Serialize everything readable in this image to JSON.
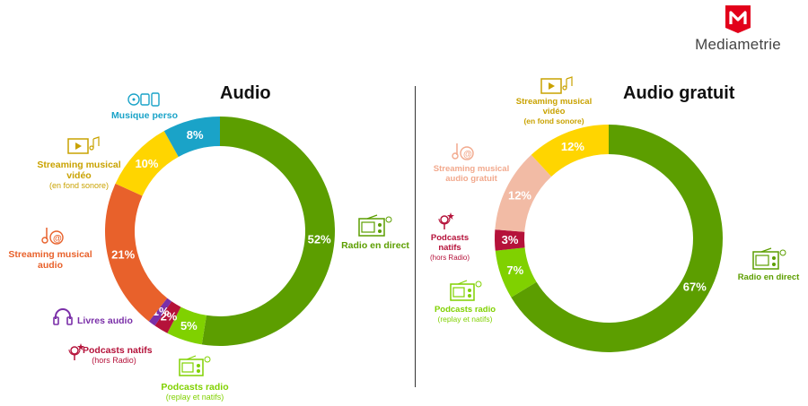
{
  "brand": {
    "name": "Mediametrie",
    "logo_color": "#e2001a"
  },
  "chart_data": [
    {
      "type": "pie",
      "title": "Audio",
      "slices": [
        {
          "label": "Radio en direct",
          "value": 52,
          "display": "52%",
          "color": "#5c9e00"
        },
        {
          "label": "Podcasts radio",
          "sublabel": "(replay et natifs)",
          "value": 5,
          "display": "5%",
          "color": "#80d100"
        },
        {
          "label": "Podcasts natifs",
          "sublabel": "(hors Radio)",
          "value": 2,
          "display": "2%",
          "color": "#b5123a"
        },
        {
          "label": "Livres audio",
          "value": 1,
          "display": "1%",
          "color": "#7a2fa8"
        },
        {
          "label": "Streaming musical audio",
          "value": 21,
          "display": "21%",
          "color": "#e8612b"
        },
        {
          "label": "Streaming musical vidéo",
          "sublabel": "(en fond sonore)",
          "value": 10,
          "display": "10%",
          "color": "#ffd500"
        },
        {
          "label": "Musique perso",
          "value": 8,
          "display": "8%",
          "color": "#1aa3c8"
        }
      ]
    },
    {
      "type": "pie",
      "title": "Audio gratuit",
      "slices": [
        {
          "label": "Radio en direct",
          "value": 67,
          "display": "67%",
          "color": "#5c9e00"
        },
        {
          "label": "Podcasts radio",
          "sublabel": "(replay et natifs)",
          "value": 7,
          "display": "7%",
          "color": "#80d100"
        },
        {
          "label": "Podcasts natifs",
          "sublabel": "(hors Radio)",
          "value": 3,
          "display": "3%",
          "color": "#b5123a"
        },
        {
          "label": "Streaming musical audio gratuit",
          "value": 12,
          "display": "12%",
          "color": "#f2bba5"
        },
        {
          "label": "Streaming musical vidéo",
          "sublabel": "(en fond sonore)",
          "value": 12,
          "display": "12%",
          "color": "#ffd500"
        }
      ]
    }
  ],
  "icons": {
    "radio": "radio-icon",
    "podcast_radio": "podcast-radio-icon",
    "podcast_mic": "podcast-microphone-icon",
    "headphones": "headphones-icon",
    "music_note": "music-note-icon",
    "video_play": "video-play-icon",
    "personal_music": "personal-music-icon"
  }
}
